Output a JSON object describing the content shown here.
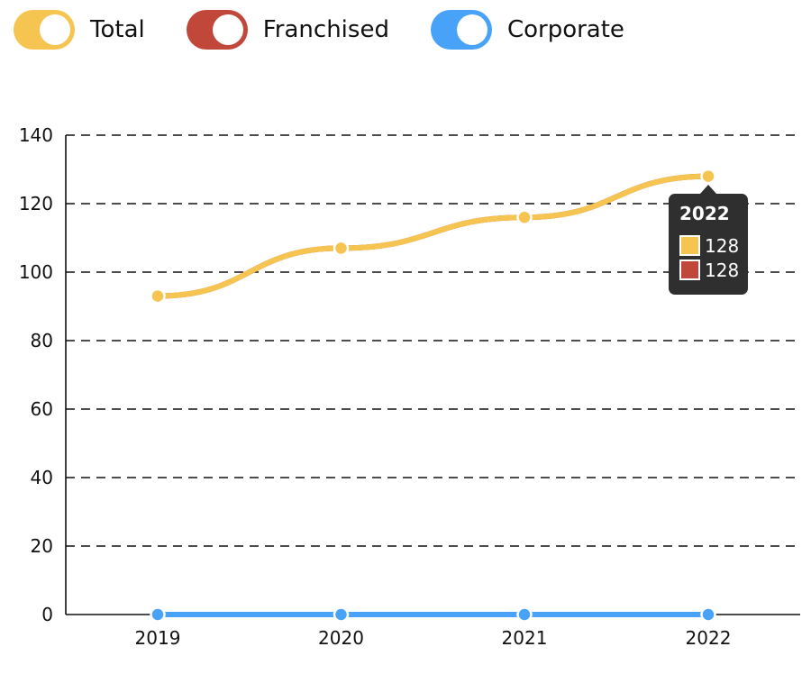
{
  "legend": {
    "items": [
      {
        "label": "Total",
        "color": "#f5c451"
      },
      {
        "label": "Franchised",
        "color": "#c0473a"
      },
      {
        "label": "Corporate",
        "color": "#47a2f8"
      }
    ]
  },
  "chart_data": {
    "type": "line",
    "categories": [
      "2019",
      "2020",
      "2021",
      "2022"
    ],
    "series": [
      {
        "name": "Total",
        "color": "#f5c451",
        "values": [
          93,
          107,
          116,
          128
        ]
      },
      {
        "name": "Franchised",
        "color": "#c0473a",
        "values": [
          93,
          107,
          116,
          128
        ]
      },
      {
        "name": "Corporate",
        "color": "#47a2f8",
        "values": [
          0,
          0,
          0,
          0
        ]
      }
    ],
    "ylim": [
      0,
      140
    ],
    "yticks": [
      "0",
      "20",
      "40",
      "60",
      "80",
      "100",
      "120",
      "140"
    ],
    "grid": true,
    "legend_position": "top-left",
    "tooltip": {
      "title": "2022",
      "entries": [
        {
          "value": "128",
          "color": "#f5c451"
        },
        {
          "value": "128",
          "color": "#c0473a"
        }
      ]
    }
  }
}
